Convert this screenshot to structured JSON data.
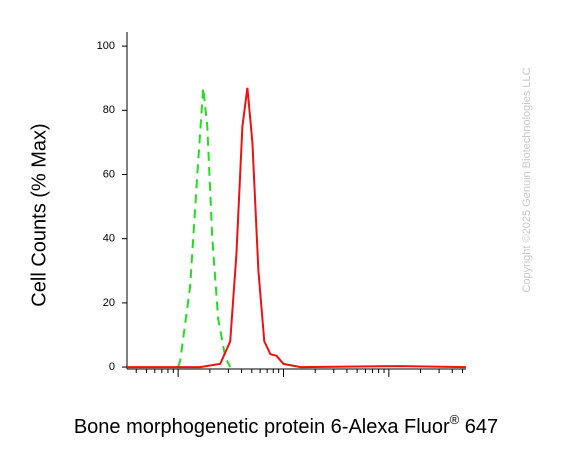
{
  "chart_data": {
    "type": "line",
    "y_label": "Cell Counts (% Max)",
    "x_label": "Bone morphogenetic protein 6-Alexa Fluor",
    "x_label_mark": "®",
    "x_label_suffix": " 647",
    "watermark": "Copyright ©2025 Genuin Biotechnologies LLC",
    "x_scale": "log",
    "xlim": [
      3.27,
      5400
    ],
    "xticks": [
      4,
      5,
      6,
      7,
      8,
      9,
      10,
      20,
      30,
      40,
      50,
      60,
      70,
      80,
      90,
      100,
      200,
      300,
      400,
      500,
      600,
      700,
      800,
      900,
      1000,
      2000,
      3000,
      4000,
      5000
    ],
    "ylim": [
      -0.6,
      104.4
    ],
    "yticks": [
      0,
      20,
      40,
      60,
      80,
      100
    ],
    "series": [
      {
        "color": "#22dd22",
        "dashed": true,
        "x": [
          10,
          10.45,
          13.0,
          15.2,
          17.3,
          18.9,
          21.1,
          24.0,
          28.0,
          31.2
        ],
        "values": [
          0,
          2,
          25,
          60,
          87,
          75,
          40,
          15,
          3,
          0
        ]
      },
      {
        "color": "#ee1111",
        "dashed": false,
        "x": [
          3.27,
          16.2,
          25.1,
          31.2,
          35.7,
          40.7,
          45.4,
          50.7,
          57.8,
          65.8,
          75.1,
          85.9,
          100,
          145,
          1300,
          5400
        ],
        "values": [
          0,
          0,
          1,
          8,
          35,
          75,
          87,
          70,
          30,
          8,
          4,
          3.5,
          1,
          0,
          0.3,
          0
        ]
      }
    ]
  }
}
